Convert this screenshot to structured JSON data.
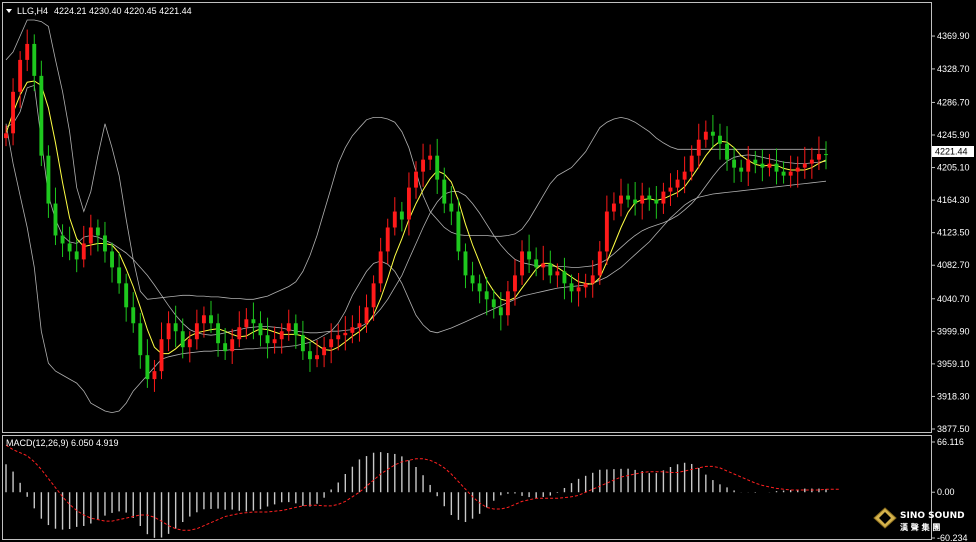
{
  "header": {
    "symbol_timeframe": "LLG,H4",
    "ohlc": "4224.21 4230.40 4220.45 4221.44"
  },
  "price_axis": {
    "ticks": [
      "4369.90",
      "4328.70",
      "4286.70",
      "4245.90",
      "4205.10",
      "4164.30",
      "4123.50",
      "4082.70",
      "4040.70",
      "3999.90",
      "3959.10",
      "3918.30",
      "3877.50"
    ],
    "current": "4221.44"
  },
  "macd": {
    "label": "MACD(12,26,9) 6.050 4.919",
    "ticks": [
      "66.116",
      "0.00",
      "-60.234"
    ]
  },
  "logo": {
    "name": "SINO SOUND",
    "sub": "漢 聲 集 團"
  },
  "colors": {
    "bull": "#ff1a1a",
    "bear": "#1ec81e",
    "ma": "#ffff44",
    "band": "#b0b0b0",
    "signal": "#ff2020",
    "hist": "#c8c8c8",
    "current_bg": "#ffffff"
  },
  "chart_data": {
    "type": "candlestick",
    "ylim": [
      3877.5,
      4390
    ],
    "macd_ylim": [
      -60.234,
      66.116
    ],
    "middle_band": [
      4256,
      4260,
      4275,
      4305,
      4308,
      4240,
      4170,
      4140,
      4120,
      4112,
      4110,
      4118,
      4120,
      4118,
      4114,
      4110,
      4104,
      4098,
      4090,
      4080,
      4070,
      4058,
      4045,
      4032,
      4020,
      4010,
      4002,
      3998,
      3996,
      3995,
      3996,
      3998,
      4000,
      4002,
      4004,
      4005,
      4006,
      4006,
      4005,
      4004,
      4002,
      4000,
      3999,
      3998,
      3998,
      3999,
      4000,
      4000,
      4001,
      4002,
      4005,
      4010,
      4018,
      4028,
      4040,
      4055,
      4070,
      4090,
      4110,
      4130,
      4148,
      4162,
      4172,
      4175,
      4175,
      4170,
      4160,
      4148,
      4134,
      4120,
      4108,
      4098,
      4090,
      4086,
      4084,
      4082,
      4082,
      4082,
      4081,
      4081,
      4080,
      4080,
      4081,
      4082,
      4085,
      4090,
      4097,
      4105,
      4113,
      4120,
      4126,
      4130,
      4133,
      4136,
      4140,
      4145,
      4152,
      4160,
      4170,
      4182,
      4194,
      4205,
      4213,
      4218,
      4220,
      4221,
      4220,
      4218,
      4216,
      4214,
      4212,
      4211,
      4210,
      4210,
      4211,
      4212,
      4213
    ],
    "upper_band": [
      4340,
      4350,
      4370,
      4390,
      4390,
      4388,
      4382,
      4340,
      4300,
      4250,
      4180,
      4150,
      4175,
      4220,
      4260,
      4230,
      4195,
      4140,
      4090,
      4050,
      4040,
      4041,
      4042,
      4043,
      4044,
      4045,
      4045,
      4044,
      4044,
      4043,
      4043,
      4042,
      4041,
      4041,
      4040,
      4040,
      4042,
      4044,
      4048,
      4052,
      4056,
      4062,
      4075,
      4095,
      4120,
      4150,
      4180,
      4210,
      4230,
      4245,
      4255,
      4265,
      4268,
      4268,
      4266,
      4262,
      4250,
      4230,
      4200,
      4170,
      4150,
      4140,
      4130,
      4124,
      4121,
      4120,
      4120,
      4120,
      4120,
      4119,
      4119,
      4120,
      4122,
      4128,
      4140,
      4155,
      4170,
      4185,
      4195,
      4200,
      4205,
      4215,
      4225,
      4240,
      4255,
      4262,
      4266,
      4268,
      4266,
      4262,
      4256,
      4250,
      4242,
      4236,
      4231,
      4228,
      4228,
      4228,
      4228,
      4228,
      4228,
      4228,
      4228,
      4228,
      4228,
      4228,
      4228,
      4228,
      4228,
      4228,
      4228,
      4228,
      4228,
      4228,
      4228,
      4228,
      4228
    ],
    "lower_band": [
      4260,
      4210,
      4170,
      4130,
      4080,
      4000,
      3960,
      3950,
      3945,
      3940,
      3935,
      3925,
      3910,
      3905,
      3900,
      3898,
      3900,
      3910,
      3925,
      3935,
      3945,
      3955,
      3965,
      3968,
      3970,
      3972,
      3973,
      3974,
      3975,
      3975,
      3976,
      3976,
      3977,
      3977,
      3978,
      3978,
      3979,
      3979,
      3980,
      3980,
      3981,
      3982,
      3984,
      3986,
      3990,
      3995,
      4000,
      4010,
      4025,
      4045,
      4060,
      4075,
      4085,
      4088,
      4084,
      4075,
      4060,
      4040,
      4020,
      4008,
      4000,
      3998,
      4001,
      4004,
      4008,
      4012,
      4016,
      4020,
      4024,
      4028,
      4032,
      4036,
      4040,
      4044,
      4046,
      4048,
      4050,
      4052,
      4054,
      4055,
      4056,
      4057,
      4058,
      4060,
      4064,
      4068,
      4074,
      4080,
      4088,
      4096,
      4104,
      4112,
      4122,
      4132,
      4142,
      4150,
      4158,
      4164,
      4168,
      4170,
      4172,
      4173,
      4174,
      4175,
      4176,
      4177,
      4178,
      4179,
      4180,
      4181,
      4182,
      4183,
      4184,
      4185,
      4186,
      4187,
      4188
    ],
    "close": [
      4248,
      4300,
      4340,
      4360,
      4320,
      4220,
      4160,
      4120,
      4110,
      4100,
      4090,
      4110,
      4130,
      4120,
      4100,
      4080,
      4060,
      4030,
      4010,
      3970,
      3940,
      3950,
      3990,
      4010,
      4000,
      3980,
      3990,
      4010,
      4020,
      4010,
      3985,
      3975,
      3990,
      4005,
      4015,
      4010,
      3995,
      3985,
      3990,
      4000,
      4010,
      3995,
      3975,
      3965,
      3970,
      3980,
      3990,
      3995,
      3998,
      4005,
      4010,
      4030,
      4060,
      4100,
      4130,
      4150,
      4140,
      4180,
      4200,
      4215,
      4220,
      4190,
      4160,
      4150,
      4100,
      4070,
      4060,
      4050,
      4040,
      4030,
      4020,
      4050,
      4070,
      4100,
      4090,
      4080,
      4085,
      4070,
      4075,
      4060,
      4050,
      4055,
      4060,
      4070,
      4100,
      4150,
      4160,
      4170,
      4165,
      4160,
      4170,
      4165,
      4160,
      4175,
      4180,
      4190,
      4200,
      4220,
      4240,
      4250,
      4245,
      4235,
      4215,
      4205,
      4200,
      4215,
      4210,
      4205,
      4210,
      4200,
      4195,
      4200,
      4205,
      4210,
      4215,
      4222,
      4221
    ],
    "signal_line": [
      62,
      56,
      52,
      48,
      40,
      30,
      18,
      6,
      -6,
      -16,
      -24,
      -30,
      -34,
      -36,
      -38,
      -38,
      -36,
      -34,
      -32,
      -30,
      -30,
      -33,
      -38,
      -44,
      -48,
      -50,
      -50,
      -48,
      -44,
      -40,
      -36,
      -32,
      -30,
      -28,
      -27,
      -26,
      -26,
      -26,
      -25,
      -24,
      -22,
      -20,
      -18,
      -17,
      -17,
      -18,
      -18,
      -16,
      -12,
      -6,
      0,
      8,
      16,
      24,
      30,
      36,
      40,
      42,
      44,
      44,
      42,
      38,
      32,
      24,
      14,
      4,
      -6,
      -14,
      -20,
      -22,
      -22,
      -20,
      -16,
      -12,
      -10,
      -8,
      -8,
      -8,
      -8,
      -7,
      -6,
      -4,
      0,
      4,
      8,
      12,
      16,
      20,
      22,
      24,
      26,
      27,
      27,
      27,
      26,
      26,
      28,
      30,
      32,
      34,
      34,
      32,
      28,
      24,
      20,
      16,
      12,
      9,
      7,
      5,
      4,
      3,
      3,
      3,
      3,
      3,
      4,
      4,
      4
    ]
  }
}
